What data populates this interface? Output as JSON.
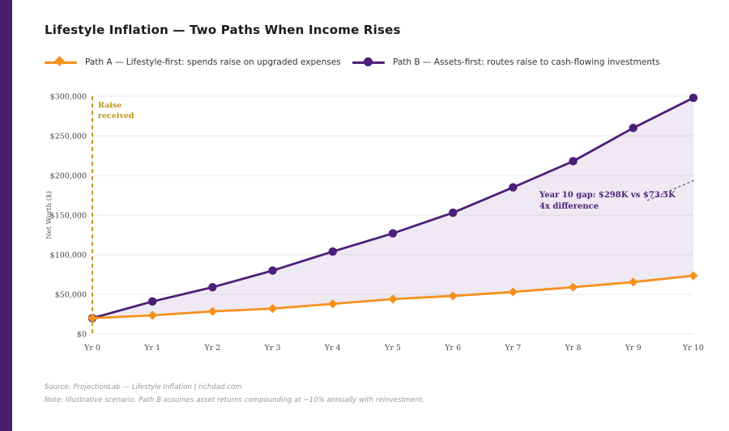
{
  "title": "Lifestyle Inflation — Two Paths When Income Rises",
  "colors": {
    "accent_bar": "#4A1F6E",
    "path_a": "#F5921E",
    "path_b": "#4B1F78",
    "gold": "#C49B1D",
    "grid": "#e9e9e9",
    "tick_text": "#474747",
    "axis_title_text": "#555555",
    "footer_text": "#999999",
    "area_fill": "rgba(84,42,133,0.10)"
  },
  "legend": {
    "items": [
      {
        "label": "Path A — Lifestyle-first: spends raise on upgraded expenses",
        "marker": "diamond",
        "color": "#F5921E"
      },
      {
        "label": "Path B — Assets-first: routes raise to cash-flowing investments",
        "marker": "circle",
        "color": "#4B1F78"
      }
    ]
  },
  "chart_data": {
    "type": "line",
    "title": "Lifestyle Inflation — Two Paths When Income Rises",
    "x_categories": [
      "Yr 0",
      "Yr 1",
      "Yr 2",
      "Yr 3",
      "Yr 4",
      "Yr 5",
      "Yr 6",
      "Yr 7",
      "Yr 8",
      "Yr 9",
      "Yr 10"
    ],
    "series": [
      {
        "name": "Path A — Lifestyle-first: spends raise on upgraded expenses",
        "marker": "diamond",
        "color": "#F5921E",
        "values": [
          20000,
          23500,
          28500,
          32000,
          38000,
          44000,
          48000,
          53000,
          59000,
          65500,
          73500
        ]
      },
      {
        "name": "Path B — Assets-first: routes raise to cash-flowing investments",
        "marker": "circle",
        "color": "#4B1F78",
        "values": [
          20000,
          41000,
          59000,
          80000,
          104000,
          127000,
          153000,
          185000,
          218000,
          260000,
          298000
        ]
      }
    ],
    "xlabel": "",
    "ylabel": "Net Worth ($)",
    "ylim": [
      0,
      300000
    ],
    "ytick_step": 50000,
    "ytick_labels": [
      "$0",
      "$50,000",
      "$100,000",
      "$150,000",
      "$200,000",
      "$250,000",
      "$300,000"
    ],
    "grid": true,
    "area_between_series": true,
    "legend_position": "top",
    "annotations": {
      "raise_marker": {
        "text_lines": [
          "Raise",
          "received"
        ],
        "x_category": "Yr 0",
        "style": "dashed-vertical-line"
      },
      "gap_note": {
        "text_lines": [
          "Year 10 gap: $298K vs $73.5K",
          "4x difference"
        ],
        "style": "dashed-connector"
      }
    }
  },
  "footer": {
    "source": "Source: ProjectionLab — Lifestyle Inflation | richdad.com",
    "note": "Note: Illustrative scenario. Path B assumes asset returns compounding at ~10% annually with reinvestment."
  }
}
